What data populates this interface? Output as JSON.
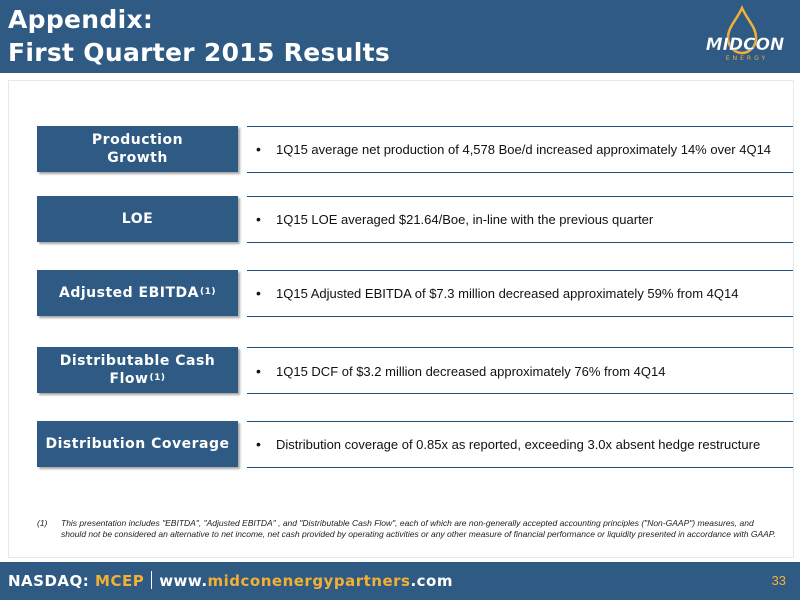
{
  "header": {
    "title_line1": "Appendix:",
    "title_line2": "First Quarter 2015 Results",
    "logo_text": "MIDCON",
    "logo_subtext": "ENERGY"
  },
  "rows": [
    {
      "label": "Production Growth",
      "label_lines": [
        "Production",
        "Growth"
      ],
      "footnote_ref": "",
      "text": "1Q15 average net production of 4,578 Boe/d increased approximately 14% over 4Q14"
    },
    {
      "label": "LOE",
      "label_lines": [
        "LOE"
      ],
      "footnote_ref": "",
      "text": "1Q15 LOE averaged $21.64/Boe, in-line with the previous quarter"
    },
    {
      "label": "Adjusted EBITDA",
      "label_lines": [
        "Adjusted EBITDA"
      ],
      "footnote_ref": "(1)",
      "text": "1Q15 Adjusted EBITDA of $7.3 million decreased approximately 59% from 4Q14"
    },
    {
      "label": "Distributable Cash Flow",
      "label_lines": [
        "Distributable Cash",
        "Flow"
      ],
      "footnote_ref": "(1)",
      "text": "1Q15 DCF of $3.2 million decreased approximately 76% from 4Q14"
    },
    {
      "label": "Distribution Coverage",
      "label_lines": [
        "Distribution Coverage"
      ],
      "footnote_ref": "",
      "text": "Distribution coverage of 0.85x as reported, exceeding 3.0x absent hedge restructure"
    }
  ],
  "bullet_char": "•",
  "footnote": {
    "number": "(1)",
    "text": "This presentation includes \"EBITDA\", \"Adjusted EBITDA\" , and \"Distributable Cash Flow\", each of which are non-generally accepted accounting principles (\"Non-GAAP\") measures, and should not be considered an alternative to net income, net cash provided by operating activities or any other measure of financial performance or liquidity presented in accordance with GAAP."
  },
  "footer": {
    "exchange_label": "NASDAQ:",
    "ticker": "MCEP",
    "website_prefix": "www.",
    "website_domain": "midconenergypartners",
    "website_suffix": ".com",
    "page_number": "33"
  },
  "colors": {
    "brand_blue": "#2e5a84",
    "accent_gold": "#f2b134"
  }
}
